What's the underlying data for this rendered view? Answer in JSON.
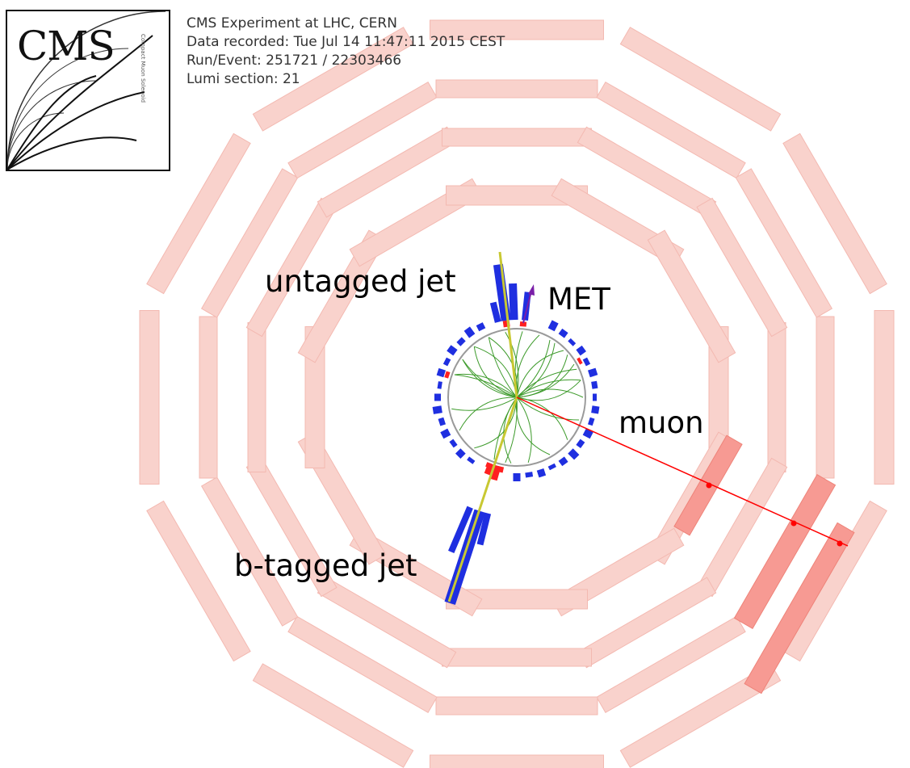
{
  "header": {
    "line1": "CMS Experiment at LHC, CERN",
    "line2": "Data recorded: Tue Jul 14 11:47:11 2015 CEST",
    "line3": "Run/Event: 251721 / 22303466",
    "line4": "Lumi section: 21"
  },
  "logo": {
    "text": "CMS",
    "subtext": "Compact Muon Solenoid"
  },
  "labels": {
    "untagged_jet": "untagged jet",
    "met": "MET",
    "muon": "muon",
    "btagged_jet": "b-tagged jet"
  },
  "colors": {
    "muon_chamber": "#f9d2cc",
    "muon_chamber_hit": "#f79a93",
    "muon_track": "#ff0000",
    "jet_axis": "#c8c832",
    "tracks": "#3c9a2a",
    "hcal": "#1f2fe0",
    "ecal": "#ff2020",
    "met_arrow": "#7a1fa8"
  }
}
